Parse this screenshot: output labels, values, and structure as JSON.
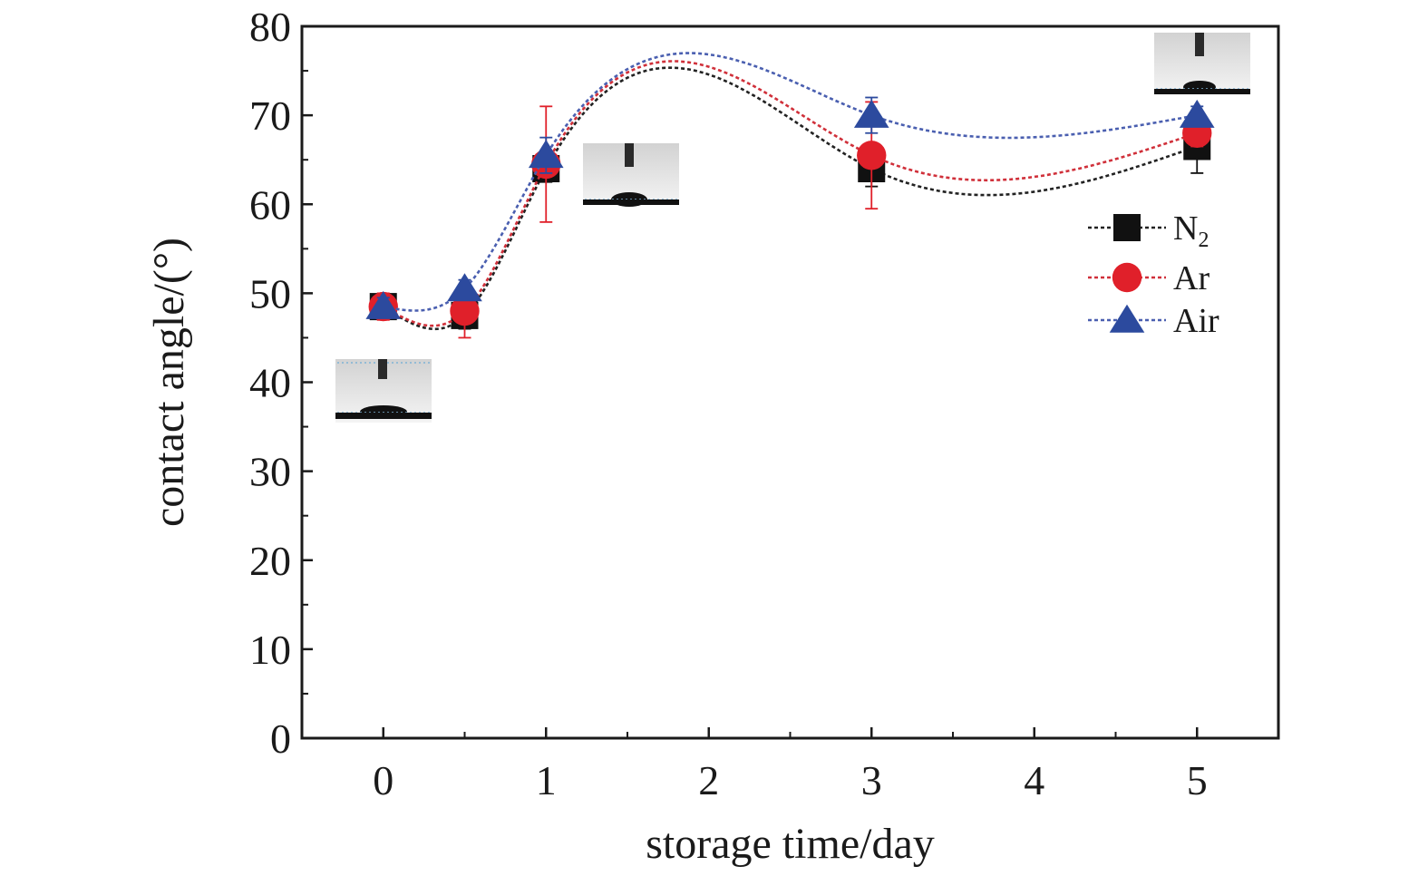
{
  "chart_data": {
    "type": "line",
    "xlabel": "storage time/day",
    "ylabel": "contact angle/(°)",
    "xlim": [
      -0.5,
      5.5
    ],
    "ylim": [
      0,
      80
    ],
    "x_ticks": [
      0,
      1,
      2,
      3,
      4,
      5
    ],
    "y_ticks": [
      0,
      10,
      20,
      30,
      40,
      50,
      60,
      70,
      80
    ],
    "x": [
      0,
      0.5,
      1,
      3,
      5
    ],
    "series": [
      {
        "name": "N2",
        "name_main": "N",
        "name_sub": "2",
        "marker": "square",
        "color": "#111111",
        "line_color": "#222222",
        "values": [
          48.5,
          47.5,
          64,
          64,
          66.5
        ],
        "errors": [
          1.0,
          1.5,
          1.5,
          2.0,
          3.0
        ]
      },
      {
        "name": "Ar",
        "marker": "circle",
        "color": "#e0202a",
        "line_color": "#d0303a",
        "values": [
          48.5,
          48,
          64.5,
          65.5,
          68
        ],
        "errors": [
          1.5,
          3.0,
          6.5,
          6.0,
          1.5
        ]
      },
      {
        "name": "Air",
        "marker": "triangle",
        "color": "#2c4a9e",
        "line_color": "#4a5fb0",
        "values": [
          48.5,
          50.5,
          65.5,
          70,
          70
        ],
        "errors": [
          1.0,
          1.0,
          2.0,
          2.0,
          1.0
        ]
      }
    ],
    "line_style": "dashed-smooth",
    "legend_position": "right",
    "grid": false,
    "insets": "droplet photographs at day 0, day 1 and day 5"
  }
}
